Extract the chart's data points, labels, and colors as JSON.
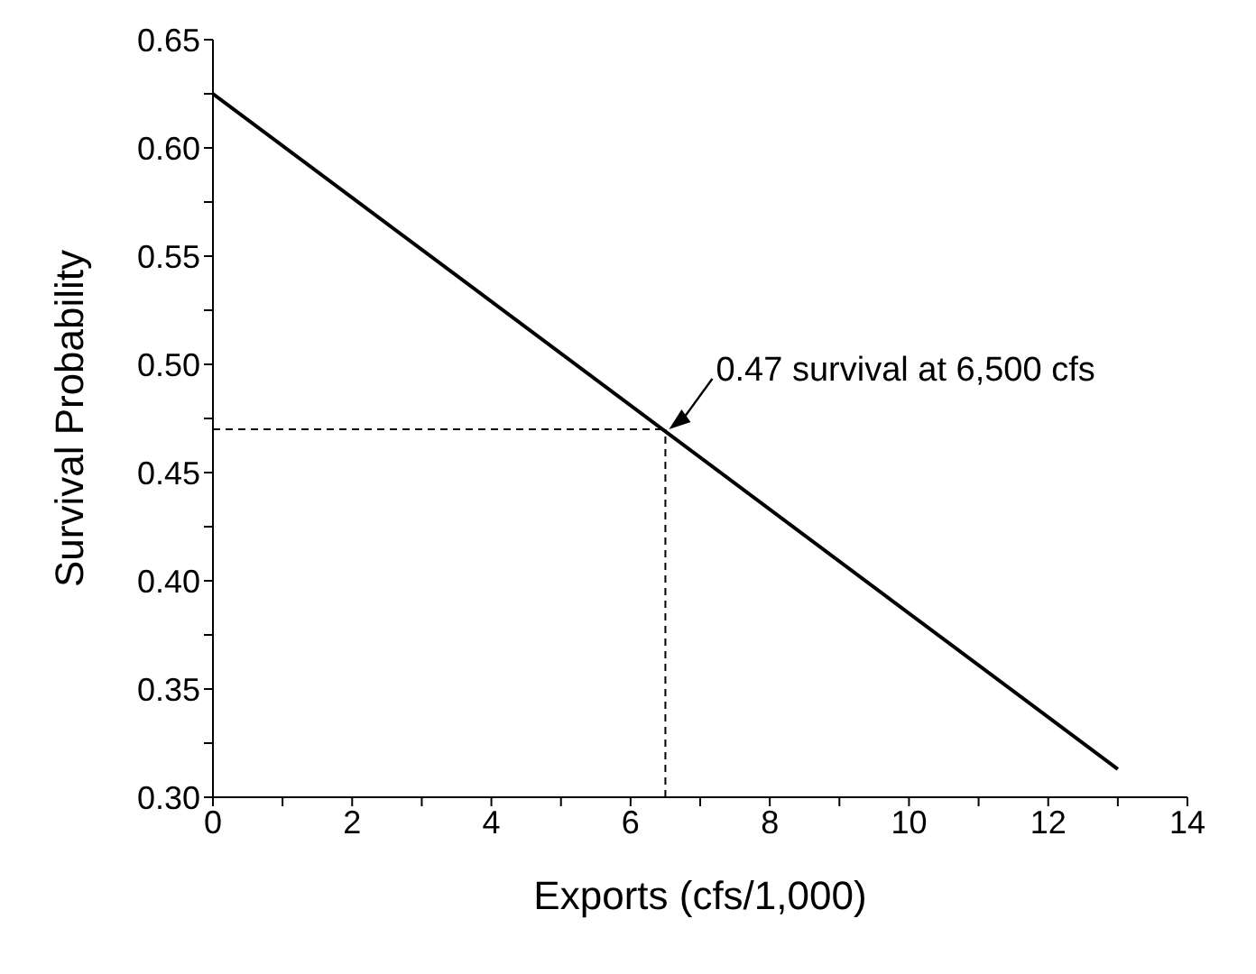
{
  "chart_data": {
    "type": "line",
    "xlabel": "Exports (cfs/1,000)",
    "ylabel": "Survival Probability",
    "x": [
      0,
      13
    ],
    "series": [
      {
        "color": "#000000",
        "values": [
          0.625,
          0.313
        ]
      }
    ],
    "xlim": [
      0,
      14
    ],
    "xticks": [
      0,
      {
        "value": 1,
        "label": null
      },
      2,
      {
        "value": 3,
        "label": null
      },
      4,
      {
        "value": 5,
        "label": null
      },
      6,
      {
        "value": 7,
        "label": null
      },
      8,
      {
        "value": 9,
        "label": null
      },
      10,
      {
        "value": 11,
        "label": null
      },
      12,
      {
        "value": 13,
        "label": null
      },
      14
    ],
    "ylim": [
      0.3,
      0.65
    ],
    "yticks": [
      {
        "value": 0.3,
        "label": "0.30"
      },
      {
        "value": 0.325,
        "label": null
      },
      {
        "value": 0.35,
        "label": "0.35"
      },
      {
        "value": 0.375,
        "label": null
      },
      {
        "value": 0.4,
        "label": "0.40"
      },
      {
        "value": 0.425,
        "label": null
      },
      {
        "value": 0.45,
        "label": "0.45"
      },
      {
        "value": 0.475,
        "label": null
      },
      {
        "value": 0.5,
        "label": "0.50"
      },
      {
        "value": 0.525,
        "label": null
      },
      {
        "value": 0.55,
        "label": "0.55"
      },
      {
        "value": 0.575,
        "label": null
      },
      {
        "value": 0.6,
        "label": "0.60"
      },
      {
        "value": 0.625,
        "label": null
      },
      {
        "value": 0.65,
        "label": "0.65"
      }
    ],
    "ref_lines": [
      {
        "axis": "x",
        "value": 6.5,
        "line_style": "dashed"
      },
      {
        "axis": "y",
        "value": 0.47,
        "line_style": "dashed"
      }
    ],
    "annotations": [
      {
        "text": "0.47 survival at 6,500 cfs",
        "x": 6.5,
        "y": 0.47
      }
    ],
    "grid": false,
    "legend": false,
    "marker": "none",
    "line_style": "solid"
  }
}
